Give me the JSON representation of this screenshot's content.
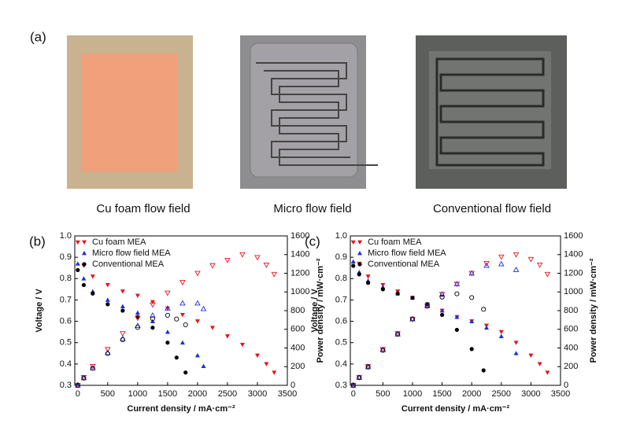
{
  "figure": {
    "panel_label": "(a)",
    "captions": [
      "Cu foam flow field",
      "Micro flow field",
      "Conventional flow field"
    ]
  },
  "chart_data": [
    {
      "type": "scatter",
      "panel_label": "(b)",
      "x_label": "Current density / mA·cm⁻²",
      "y_label": "Voltage / V",
      "y2_label": "Power density / mW·cm⁻²",
      "xlim": [
        -50,
        3500
      ],
      "xticks": [
        0,
        500,
        1000,
        1500,
        2000,
        2500,
        3000,
        3500
      ],
      "ylim": [
        0.3,
        1.0
      ],
      "yticks": [
        0.3,
        0.4,
        0.5,
        0.6,
        0.7,
        0.8,
        0.9,
        {
          "value": 1.0,
          "label": "1.0"
        }
      ],
      "y2lim": [
        0,
        1600
      ],
      "y2ticks": [
        0,
        200,
        400,
        600,
        800,
        1000,
        1200,
        1400,
        1600
      ],
      "series": [
        {
          "name": "Cu foam MEA",
          "color": "#e8141c",
          "marker": "triangle-down",
          "x": [
            0,
            100,
            250,
            500,
            750,
            1000,
            1250,
            1500,
            1750,
            2000,
            2250,
            2500,
            2750,
            3000,
            3150,
            3280
          ],
          "values": [
            0.97,
            0.86,
            0.81,
            0.77,
            0.74,
            0.72,
            0.69,
            0.66,
            0.63,
            0.6,
            0.57,
            0.53,
            0.49,
            0.44,
            0.4,
            0.36
          ]
        },
        {
          "name": "Micro flow field MEA",
          "color": "#1a2ee0",
          "marker": "triangle-up",
          "x": [
            0,
            100,
            250,
            500,
            750,
            1000,
            1250,
            1500,
            1750,
            2000,
            2100
          ],
          "values": [
            0.87,
            0.8,
            0.74,
            0.7,
            0.67,
            0.64,
            0.6,
            0.55,
            0.5,
            0.44,
            0.39
          ]
        },
        {
          "name": "Conventional MEA",
          "color": "#000000",
          "marker": "circle",
          "x": [
            0,
            100,
            250,
            500,
            750,
            1000,
            1250,
            1500,
            1650,
            1800
          ],
          "values": [
            0.84,
            0.77,
            0.73,
            0.68,
            0.65,
            0.62,
            0.57,
            0.5,
            0.43,
            0.36
          ]
        },
        {
          "color": "#e8141c",
          "marker": "triangle-down-open",
          "axis": "y2",
          "x": [
            0,
            100,
            250,
            500,
            750,
            1000,
            1250,
            1500,
            1750,
            2000,
            2250,
            2500,
            2750,
            3000,
            3150,
            3280
          ],
          "values": [
            0,
            86,
            203,
            385,
            555,
            720,
            863,
            990,
            1103,
            1200,
            1283,
            1340,
            1400,
            1370,
            1290,
            1190
          ]
        },
        {
          "color": "#1a2ee0",
          "marker": "triangle-up-open",
          "axis": "y2",
          "x": [
            0,
            100,
            250,
            500,
            750,
            1000,
            1250,
            1500,
            1750,
            2000,
            2100
          ],
          "values": [
            0,
            80,
            185,
            350,
            500,
            640,
            750,
            825,
            880,
            880,
            820
          ]
        },
        {
          "color": "#000000",
          "marker": "circle-open",
          "axis": "y2",
          "x": [
            0,
            100,
            250,
            500,
            750,
            1000,
            1250,
            1500,
            1650,
            1800
          ],
          "values": [
            0,
            77,
            183,
            340,
            488,
            620,
            713,
            750,
            710,
            648
          ]
        }
      ]
    },
    {
      "type": "scatter",
      "panel_label": "(c)",
      "x_label": "Current density / mA·cm⁻²",
      "y_label": "Voltage / V",
      "y2_label": "Power density / mW·cm⁻²",
      "xlim": [
        -50,
        3500
      ],
      "xticks": [
        0,
        500,
        1000,
        1500,
        2000,
        2500,
        3000,
        3500
      ],
      "ylim": [
        0.3,
        1.0
      ],
      "yticks": [
        0.3,
        0.4,
        0.5,
        0.6,
        0.7,
        0.8,
        0.9,
        {
          "value": 1.0,
          "label": "1.0"
        }
      ],
      "y2lim": [
        0,
        1600
      ],
      "y2ticks": [
        0,
        200,
        400,
        600,
        800,
        1000,
        1200,
        1400,
        1600
      ],
      "series": [
        {
          "name": "Cu foam MEA",
          "color": "#e8141c",
          "marker": "triangle-down",
          "x": [
            0,
            100,
            250,
            500,
            750,
            1000,
            1250,
            1500,
            1750,
            2000,
            2250,
            2500,
            2750,
            3000,
            3150,
            3280
          ],
          "values": [
            0.97,
            0.87,
            0.81,
            0.77,
            0.74,
            0.71,
            0.68,
            0.65,
            0.62,
            0.6,
            0.58,
            0.55,
            0.5,
            0.44,
            0.4,
            0.36
          ]
        },
        {
          "name": "Micro flow field MEA",
          "color": "#1a2ee0",
          "marker": "triangle-up",
          "x": [
            0,
            100,
            250,
            500,
            750,
            1000,
            1250,
            1500,
            1750,
            2000,
            2250,
            2500,
            2750
          ],
          "values": [
            0.88,
            0.83,
            0.79,
            0.76,
            0.73,
            0.71,
            0.68,
            0.65,
            0.62,
            0.6,
            0.57,
            0.53,
            0.45
          ]
        },
        {
          "name": "Conventional MEA",
          "color": "#000000",
          "marker": "circle",
          "x": [
            0,
            100,
            250,
            500,
            750,
            1000,
            1250,
            1500,
            1750,
            2000,
            2200
          ],
          "values": [
            0.86,
            0.82,
            0.78,
            0.75,
            0.73,
            0.71,
            0.68,
            0.63,
            0.56,
            0.47,
            0.37
          ]
        },
        {
          "color": "#e8141c",
          "marker": "triangle-down-open",
          "axis": "y2",
          "x": [
            0,
            100,
            250,
            500,
            750,
            1000,
            1250,
            1500,
            1750,
            2000,
            2250,
            2500,
            2750,
            3000,
            3150,
            3280
          ],
          "values": [
            0,
            87,
            203,
            385,
            555,
            710,
            850,
            975,
            1085,
            1200,
            1305,
            1375,
            1400,
            1350,
            1290,
            1190
          ]
        },
        {
          "color": "#1a2ee0",
          "marker": "triangle-up-open",
          "axis": "y2",
          "x": [
            0,
            100,
            250,
            500,
            750,
            1000,
            1250,
            1500,
            1750,
            2000,
            2250,
            2500,
            2750
          ],
          "values": [
            0,
            83,
            198,
            380,
            548,
            710,
            850,
            975,
            1085,
            1200,
            1283,
            1300,
            1238
          ]
        },
        {
          "color": "#000000",
          "marker": "circle-open",
          "axis": "y2",
          "x": [
            0,
            100,
            250,
            500,
            750,
            1000,
            1250,
            1500,
            1750,
            2000,
            2200
          ],
          "values": [
            0,
            82,
            195,
            375,
            548,
            710,
            850,
            945,
            980,
            940,
            814
          ]
        }
      ]
    }
  ]
}
